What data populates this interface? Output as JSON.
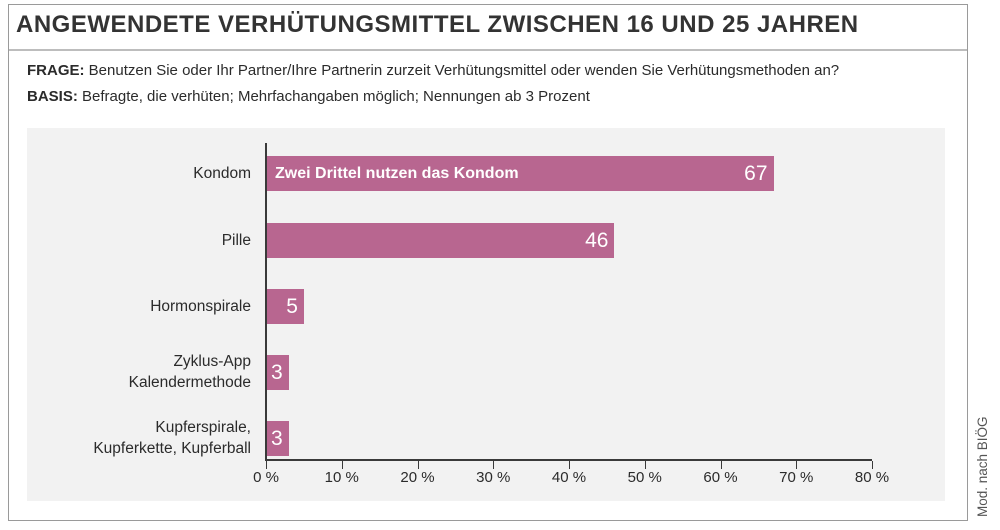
{
  "title": "ANGEWENDETE VERHÜTUNGSMITTEL ZWISCHEN 16 UND 25 JAHREN",
  "frage_label": "FRAGE:",
  "frage_text": "Benutzen Sie oder Ihr Partner/Ihre Partnerin zurzeit Verhütungsmittel oder wenden Sie Verhütungsmethoden an?",
  "basis_label": "BASIS:",
  "basis_text": "Befragte, die verhüten; Mehrfachangaben möglich; Nennungen ab 3 Prozent",
  "source": "Mod. nach BIÖG",
  "bar_color": "#b86690",
  "chart_data": {
    "type": "bar",
    "orientation": "horizontal",
    "categories": [
      [
        "Kondom"
      ],
      [
        "Pille"
      ],
      [
        "Hormonspirale"
      ],
      [
        "Zyklus-App",
        "Kalendermethode"
      ],
      [
        "Kupferspirale,",
        "Kupferkette, Kupferball"
      ]
    ],
    "values": [
      67,
      46,
      5,
      3,
      3
    ],
    "annotations": [
      {
        "category_index": 0,
        "text": "Zwei Drittel nutzen das Kondom"
      }
    ],
    "xlim": [
      0,
      80
    ],
    "xticks": [
      "0 %",
      "10 %",
      "20 %",
      "30 %",
      "40 %",
      "50 %",
      "60 %",
      "70 %",
      "80 %"
    ],
    "xlabel": "",
    "ylabel": "",
    "grid": false,
    "legend": "none"
  }
}
